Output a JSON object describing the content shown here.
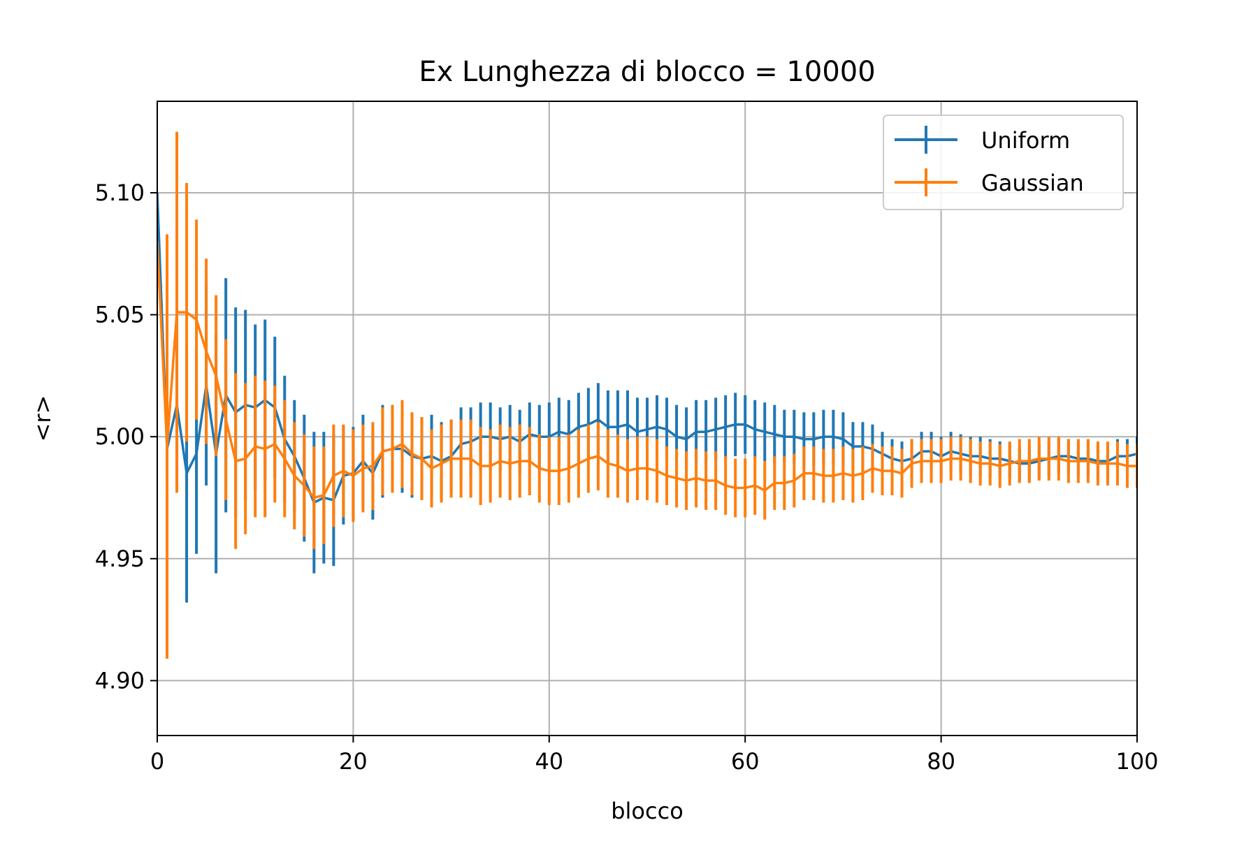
{
  "chart_data": {
    "type": "line",
    "title": "Ex Lunghezza di blocco = 10000",
    "xlabel": "blocco",
    "ylabel": "<r>",
    "xlim": [
      0,
      100
    ],
    "ylim": [
      4.8775,
      5.1375
    ],
    "xticks": [
      0,
      20,
      40,
      60,
      80,
      100
    ],
    "xtick_labels": [
      "0",
      "20",
      "40",
      "60",
      "80",
      "100"
    ],
    "yticks": [
      4.9,
      4.95,
      5.0,
      5.05,
      5.1
    ],
    "ytick_labels": [
      "4.90",
      "4.95",
      "5.00",
      "5.05",
      "5.10"
    ],
    "grid": true,
    "legend_position": "top-right",
    "error_bars": true,
    "series": [
      {
        "name": "Uniform",
        "color": "#1f77b4",
        "x": [
          0,
          1,
          2,
          3,
          4,
          5,
          6,
          7,
          8,
          9,
          10,
          11,
          12,
          13,
          14,
          15,
          16,
          17,
          18,
          19,
          20,
          21,
          22,
          23,
          24,
          25,
          26,
          27,
          28,
          29,
          30,
          31,
          32,
          33,
          34,
          35,
          36,
          37,
          38,
          39,
          40,
          41,
          42,
          43,
          44,
          45,
          46,
          47,
          48,
          49,
          50,
          51,
          52,
          53,
          54,
          55,
          56,
          57,
          58,
          59,
          60,
          61,
          62,
          63,
          64,
          65,
          66,
          67,
          68,
          69,
          70,
          71,
          72,
          73,
          74,
          75,
          76,
          77,
          78,
          79,
          80,
          81,
          82,
          83,
          84,
          85,
          86,
          87,
          88,
          89,
          90,
          91,
          92,
          93,
          94,
          95,
          96,
          97,
          98,
          99,
          100
        ],
        "y": [
          5.1,
          4.995,
          5.013,
          4.985,
          4.993,
          5.021,
          4.993,
          5.017,
          5.01,
          5.013,
          5.012,
          5.015,
          5.012,
          4.999,
          4.992,
          4.983,
          4.973,
          4.975,
          4.974,
          4.984,
          4.985,
          4.99,
          4.985,
          4.994,
          4.995,
          4.995,
          4.992,
          4.991,
          4.992,
          4.99,
          4.992,
          4.997,
          4.998,
          5.0,
          5.0,
          4.999,
          5.0,
          4.998,
          5.001,
          5.0,
          5.0,
          5.002,
          5.001,
          5.004,
          5.005,
          5.007,
          5.004,
          5.004,
          5.005,
          5.002,
          5.003,
          5.004,
          5.003,
          5.0,
          4.999,
          5.002,
          5.002,
          5.003,
          5.004,
          5.005,
          5.005,
          5.003,
          5.002,
          5.001,
          5.0,
          5.0,
          4.999,
          4.999,
          5.0,
          5.0,
          4.999,
          4.996,
          4.996,
          4.995,
          4.993,
          4.991,
          4.99,
          4.991,
          4.994,
          4.994,
          4.992,
          4.994,
          4.993,
          4.992,
          4.992,
          4.991,
          4.991,
          4.99,
          4.989,
          4.989,
          4.99,
          4.991,
          4.992,
          4.992,
          4.991,
          4.991,
          4.99,
          4.99,
          4.992,
          4.992,
          4.993
        ],
        "err": [
          0,
          0.011,
          0.035,
          0.053,
          0.041,
          0.041,
          0.049,
          0.048,
          0.043,
          0.039,
          0.034,
          0.033,
          0.029,
          0.026,
          0.023,
          0.026,
          0.029,
          0.027,
          0.027,
          0.02,
          0.019,
          0.019,
          0.019,
          0.019,
          0.018,
          0.018,
          0.017,
          0.017,
          0.017,
          0.016,
          0.015,
          0.015,
          0.014,
          0.014,
          0.014,
          0.013,
          0.013,
          0.013,
          0.013,
          0.013,
          0.014,
          0.014,
          0.014,
          0.014,
          0.015,
          0.015,
          0.015,
          0.015,
          0.014,
          0.014,
          0.013,
          0.013,
          0.013,
          0.013,
          0.013,
          0.013,
          0.013,
          0.013,
          0.013,
          0.013,
          0.012,
          0.012,
          0.012,
          0.012,
          0.011,
          0.011,
          0.011,
          0.011,
          0.011,
          0.011,
          0.011,
          0.01,
          0.01,
          0.01,
          0.009,
          0.008,
          0.008,
          0.008,
          0.008,
          0.008,
          0.008,
          0.008,
          0.008,
          0.008,
          0.008,
          0.008,
          0.007,
          0.007,
          0.007,
          0.007,
          0.007,
          0.007,
          0.007,
          0.007,
          0.007,
          0.007,
          0.007,
          0.007,
          0.007,
          0.007,
          0.007
        ]
      },
      {
        "name": "Gaussian",
        "color": "#ff7f0e",
        "x": [
          0,
          1,
          2,
          3,
          4,
          5,
          6,
          7,
          8,
          9,
          10,
          11,
          12,
          13,
          14,
          15,
          16,
          17,
          18,
          19,
          20,
          21,
          22,
          23,
          24,
          25,
          26,
          27,
          28,
          29,
          30,
          31,
          32,
          33,
          34,
          35,
          36,
          37,
          38,
          39,
          40,
          41,
          42,
          43,
          44,
          45,
          46,
          47,
          48,
          49,
          50,
          51,
          52,
          53,
          54,
          55,
          56,
          57,
          58,
          59,
          60,
          61,
          62,
          63,
          64,
          65,
          66,
          67,
          68,
          69,
          70,
          71,
          72,
          73,
          74,
          75,
          76,
          77,
          78,
          79,
          80,
          81,
          82,
          83,
          84,
          85,
          86,
          87,
          88,
          89,
          90,
          91,
          92,
          93,
          94,
          95,
          96,
          97,
          98,
          99,
          100
        ],
        "y": [
          5.08,
          4.996,
          5.051,
          5.051,
          5.048,
          5.035,
          5.025,
          5.007,
          4.99,
          4.991,
          4.996,
          4.995,
          4.997,
          4.991,
          4.984,
          4.98,
          4.975,
          4.976,
          4.984,
          4.986,
          4.984,
          4.987,
          4.988,
          4.994,
          4.995,
          4.997,
          4.993,
          4.991,
          4.987,
          4.989,
          4.991,
          4.991,
          4.991,
          4.988,
          4.988,
          4.99,
          4.989,
          4.99,
          4.99,
          4.987,
          4.986,
          4.986,
          4.987,
          4.989,
          4.991,
          4.992,
          4.989,
          4.988,
          4.986,
          4.987,
          4.987,
          4.986,
          4.984,
          4.983,
          4.982,
          4.983,
          4.982,
          4.982,
          4.98,
          4.979,
          4.979,
          4.98,
          4.978,
          4.981,
          4.981,
          4.982,
          4.985,
          4.985,
          4.984,
          4.984,
          4.985,
          4.984,
          4.985,
          4.987,
          4.986,
          4.986,
          4.985,
          4.989,
          4.99,
          4.99,
          4.99,
          4.991,
          4.991,
          4.99,
          4.989,
          4.989,
          4.988,
          4.989,
          4.99,
          4.99,
          4.991,
          4.991,
          4.991,
          4.99,
          4.99,
          4.99,
          4.989,
          4.989,
          4.989,
          4.988,
          4.988
        ],
        "err": [
          0,
          0.087,
          0.074,
          0.053,
          0.041,
          0.038,
          0.033,
          0.033,
          0.036,
          0.031,
          0.029,
          0.028,
          0.024,
          0.024,
          0.022,
          0.021,
          0.021,
          0.02,
          0.021,
          0.019,
          0.019,
          0.018,
          0.018,
          0.018,
          0.018,
          0.018,
          0.017,
          0.017,
          0.016,
          0.016,
          0.016,
          0.016,
          0.016,
          0.016,
          0.015,
          0.015,
          0.015,
          0.015,
          0.014,
          0.014,
          0.014,
          0.014,
          0.014,
          0.014,
          0.014,
          0.014,
          0.014,
          0.013,
          0.013,
          0.013,
          0.013,
          0.013,
          0.012,
          0.012,
          0.012,
          0.012,
          0.012,
          0.012,
          0.012,
          0.012,
          0.012,
          0.012,
          0.012,
          0.011,
          0.011,
          0.011,
          0.011,
          0.011,
          0.011,
          0.011,
          0.011,
          0.011,
          0.011,
          0.01,
          0.01,
          0.01,
          0.01,
          0.01,
          0.009,
          0.009,
          0.009,
          0.009,
          0.009,
          0.009,
          0.009,
          0.009,
          0.009,
          0.009,
          0.009,
          0.009,
          0.009,
          0.009,
          0.009,
          0.009,
          0.009,
          0.009,
          0.009,
          0.009,
          0.009,
          0.009,
          0.009
        ]
      }
    ]
  }
}
